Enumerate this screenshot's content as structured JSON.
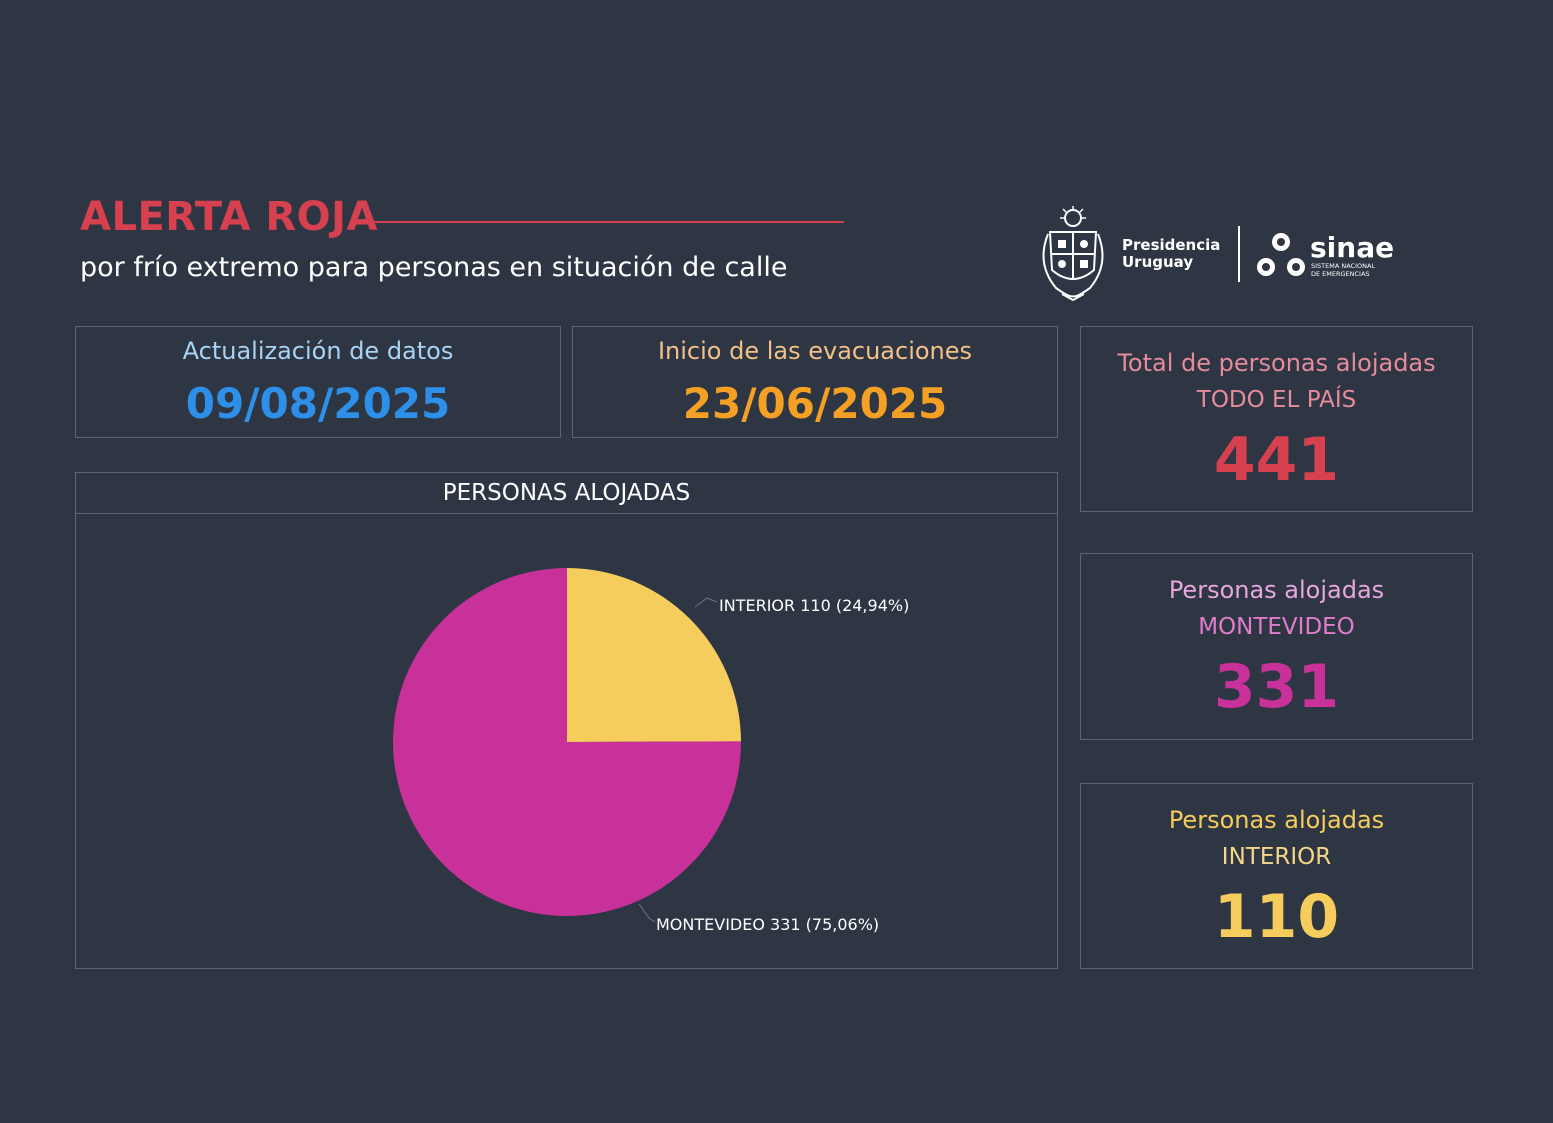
{
  "header": {
    "title": "ALERTA ROJA",
    "subtitle": "por frío extremo para personas en situación de calle",
    "title_color": "#d6404f"
  },
  "logos": {
    "presidencia_line1": "Presidencia",
    "presidencia_line2": "Uruguay",
    "sinae_name": "sinae",
    "sinae_line1": "SISTEMA NACIONAL",
    "sinae_line2": "DE EMERGENCIAS",
    "emblem_icon": "coat-of-arms-icon",
    "sinae_icon": "sinae-triangle-icon"
  },
  "update_card": {
    "label": "Actualización de datos",
    "value": "09/08/2025",
    "label_color": "#a9d3f5",
    "value_color": "#2e8fe8"
  },
  "evacuation_card": {
    "label": "Inicio de las evacuaciones",
    "value": "23/06/2025",
    "label_color": "#f3c08a",
    "value_color": "#f3a024"
  },
  "total_card": {
    "label": "Total de personas alojadas",
    "sublabel": "TODO EL PAÍS",
    "value": "441",
    "label_color": "#e58b9b",
    "sublabel_color": "#e58b9b",
    "value_color": "#d6404f"
  },
  "montevideo_card": {
    "label": "Personas alojadas",
    "sublabel": "MONTEVIDEO",
    "value": "331",
    "label_color": "#e7a6e0",
    "sublabel_color": "#e07ccb",
    "value_color": "#c9319a"
  },
  "interior_card": {
    "label": "Personas alojadas",
    "sublabel": "INTERIOR",
    "value": "110",
    "label_color": "#f6cd5d",
    "sublabel_color": "#f6d58a",
    "value_color": "#f6cd5d"
  },
  "chart_panel": {
    "title": "PERSONAS ALOJADAS"
  },
  "chart_data": {
    "type": "pie",
    "title": "PERSONAS ALOJADAS",
    "slices": [
      {
        "name": "INTERIOR",
        "value": 110,
        "percent": 24.94,
        "label": "INTERIOR 110 (24,94%)",
        "color": "#f6cd5d"
      },
      {
        "name": "MONTEVIDEO",
        "value": 331,
        "percent": 75.06,
        "label": "MONTEVIDEO 331 (75,06%)",
        "color": "#c9319a"
      }
    ],
    "start_angle": "12 o'clock",
    "direction": "clockwise"
  }
}
